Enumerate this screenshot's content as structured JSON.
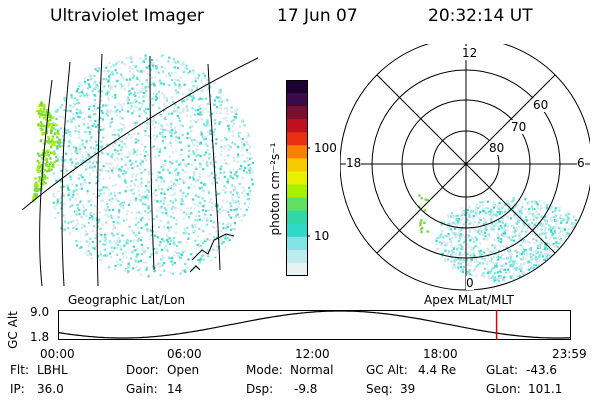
{
  "header": {
    "instrument": "Ultraviolet Imager",
    "date": "17 Jun 07",
    "time": "20:32:14 UT"
  },
  "colors": {
    "dots_low": "#d8e8f0",
    "dots_cyan": "#7fe6e0",
    "dots_teal": "#3fd8c8",
    "dots_green": "#7ad94a",
    "dots_lime": "#a8f000",
    "marker": "#e00000"
  },
  "colorbar": {
    "label": "photon cm⁻²s⁻¹",
    "ticks": [
      "100",
      "10"
    ]
  },
  "geo_panel": {
    "label": "Geographic Lat/Lon"
  },
  "apex_panel": {
    "label": "Apex MLat/MLT",
    "mlt_labels": {
      "top": "12",
      "left": "18",
      "right": "6",
      "bottom": "0"
    },
    "lat_labels": [
      "60",
      "70",
      "80"
    ]
  },
  "timeline": {
    "ylabel": "GC Alt",
    "y_ticks": [
      "9.0",
      "1.8"
    ],
    "x_ticks": [
      "00:00",
      "06:00",
      "12:00",
      "18:00",
      "23:59"
    ],
    "marker_time": "20:32:14"
  },
  "info": {
    "flt_label": "Flt:",
    "flt_value": "LBHL",
    "ip_label": "IP:",
    "ip_value": "36.0",
    "door_label": "Door:",
    "door_value": "Open",
    "gain_label": "Gain:",
    "gain_value": "14",
    "mode_label": "Mode:",
    "mode_value": "Normal",
    "dsp_label": "Dsp:",
    "dsp_value": "-9.8",
    "gcalt_label": "GC Alt:",
    "gcalt_value": "4.4 Re",
    "seq_label": "Seq:",
    "seq_value": "39",
    "glat_label": "GLat:",
    "glat_value": "-43.6",
    "glon_label": "GLon:",
    "glon_value": "101.1"
  }
}
